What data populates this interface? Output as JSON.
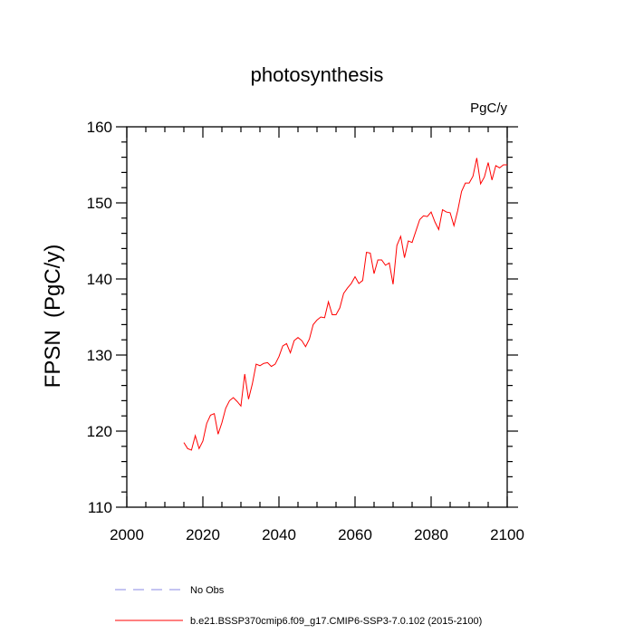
{
  "chart_data": {
    "type": "line",
    "title": "photosynthesis",
    "units": "PgC/y",
    "xlabel": "",
    "ylabel": "FPSN  (PgC/y)",
    "xlim": [
      2000,
      2100
    ],
    "ylim": [
      110,
      160
    ],
    "xticks": [
      2000,
      2020,
      2040,
      2060,
      2080,
      2100
    ],
    "yticks": [
      110,
      120,
      130,
      140,
      150,
      160
    ],
    "series": [
      {
        "name": "No Obs",
        "color": "#8a8ae6",
        "dash": true,
        "x": [],
        "y": []
      },
      {
        "name": "b.e21.BSSP370cmip6.f09_g17.CMIP6-SSP3-7.0.102 (2015-2100)",
        "color": "#ff0000",
        "dash": false,
        "x": [
          2015,
          2016,
          2017,
          2018,
          2019,
          2020,
          2021,
          2022,
          2023,
          2024,
          2025,
          2026,
          2027,
          2028,
          2029,
          2030,
          2031,
          2032,
          2033,
          2034,
          2035,
          2036,
          2037,
          2038,
          2039,
          2040,
          2041,
          2042,
          2043,
          2044,
          2045,
          2046,
          2047,
          2048,
          2049,
          2050,
          2051,
          2052,
          2053,
          2054,
          2055,
          2056,
          2057,
          2058,
          2059,
          2060,
          2061,
          2062,
          2063,
          2064,
          2065,
          2066,
          2067,
          2068,
          2069,
          2070,
          2071,
          2072,
          2073,
          2074,
          2075,
          2076,
          2077,
          2078,
          2079,
          2080,
          2081,
          2082,
          2083,
          2084,
          2085,
          2086,
          2087,
          2088,
          2089,
          2090,
          2091,
          2092,
          2093,
          2094,
          2095,
          2096,
          2097,
          2098,
          2099,
          2100
        ],
        "y": [
          118.5,
          117.7,
          117.5,
          119.4,
          117.7,
          118.7,
          121.0,
          122.1,
          122.3,
          119.6,
          121.1,
          123.0,
          124.0,
          124.4,
          123.9,
          123.3,
          127.5,
          124.2,
          126.2,
          128.8,
          128.6,
          128.9,
          129.0,
          128.5,
          128.8,
          129.8,
          131.2,
          131.5,
          130.3,
          131.9,
          132.3,
          131.9,
          131.1,
          132.1,
          134.0,
          134.6,
          135.0,
          134.9,
          137.0,
          135.3,
          135.3,
          136.2,
          138.1,
          138.8,
          139.4,
          140.3,
          139.4,
          139.8,
          143.5,
          143.4,
          140.7,
          142.5,
          142.5,
          141.8,
          142.1,
          139.3,
          144.4,
          145.6,
          142.8,
          145.0,
          144.8,
          146.3,
          147.8,
          148.3,
          148.2,
          148.8,
          147.5,
          146.5,
          149.1,
          148.8,
          148.7,
          147.0,
          149.0,
          151.5,
          152.6,
          152.6,
          153.5,
          155.9,
          152.5,
          153.4,
          155.3,
          153.0,
          154.9,
          154.6,
          155.0,
          155.0
        ]
      }
    ]
  }
}
